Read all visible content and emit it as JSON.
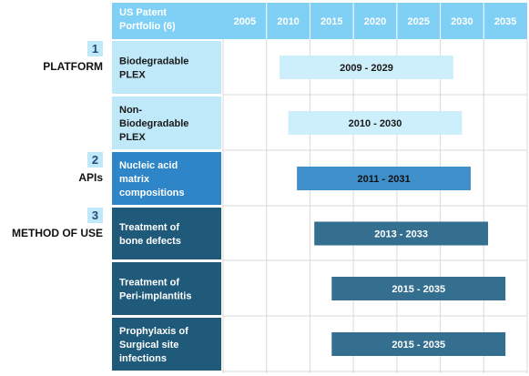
{
  "chart_data": {
    "type": "bar",
    "title": "US Patent Portfolio (6)",
    "x_ticks": [
      2005,
      2010,
      2015,
      2020,
      2025,
      2030,
      2035
    ],
    "xlim": [
      2002.5,
      2037.5
    ],
    "categories": [
      {
        "number": "1",
        "name": "PLATFORM"
      },
      {
        "number": "2",
        "name": "APIs"
      },
      {
        "number": "3",
        "name": "METHOD OF USE"
      }
    ],
    "rows": [
      {
        "label": [
          "Biodegradable",
          "PLEX"
        ],
        "start": 2009,
        "end": 2029,
        "range_label": "2009 - 2029",
        "category": 0,
        "color": "#cdeefb"
      },
      {
        "label": [
          "Non-",
          "Biodegradable",
          "PLEX"
        ],
        "start": 2010,
        "end": 2030,
        "range_label": "2010 - 2030",
        "category": 0,
        "color": "#cdeefb"
      },
      {
        "label": [
          "Nucleic acid",
          "matrix",
          "compositions"
        ],
        "start": 2011,
        "end": 2031,
        "range_label": "2011 - 2031",
        "category": 1,
        "color": "#3f8fcb"
      },
      {
        "label": [
          "Treatment of",
          "bone defects"
        ],
        "start": 2013,
        "end": 2033,
        "range_label": "2013 - 2033",
        "category": 2,
        "color": "#356f8f"
      },
      {
        "label": [
          "Treatment of",
          "Peri-implantitis"
        ],
        "start": 2015,
        "end": 2035,
        "range_label": "2015 - 2035",
        "category": 2,
        "color": "#356f8f"
      },
      {
        "label": [
          "Prophylaxis of",
          "Surgical site",
          "infections"
        ],
        "start": 2015,
        "end": 2035,
        "range_label": "2015 - 2035",
        "category": 2,
        "color": "#356f8f"
      }
    ],
    "colors": {
      "header": "#7fd0f4",
      "platform_cell": "#bfe8f8",
      "api_cell": "#2e86c8",
      "method_cell": "#1f5a7a",
      "grid": "#d9d9d9",
      "badge_border": "#1f4e79",
      "badge_fill": "#bfe8f8"
    }
  }
}
